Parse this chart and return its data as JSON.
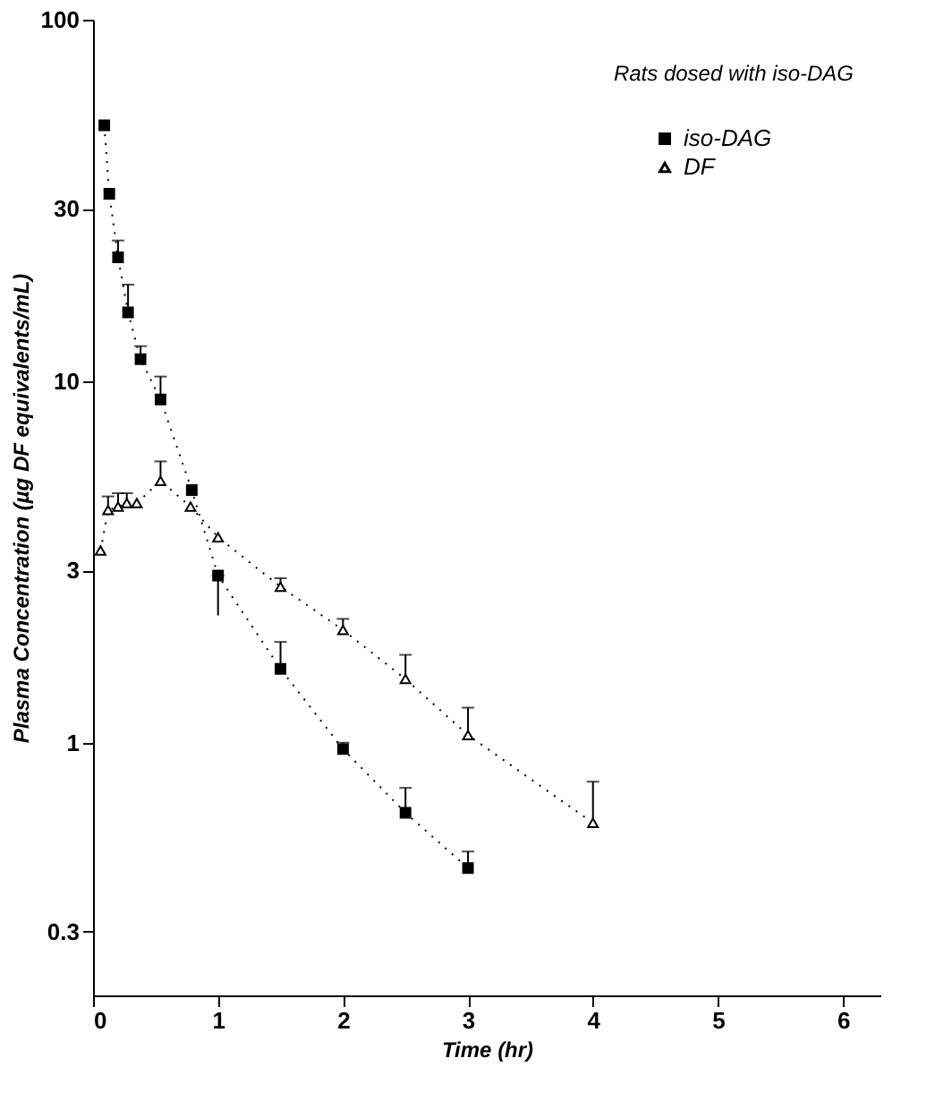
{
  "chart_data": {
    "type": "line",
    "xlabel": "Time (hr)",
    "ylabel": "Plasma Concentration (µg DF equivalents/mL)",
    "annotations": [
      "Rats dosed with iso-DAG"
    ],
    "log": "y",
    "xlim": [
      0,
      6.3
    ],
    "xticks": [
      0,
      1,
      2,
      3,
      4,
      5,
      6
    ],
    "ylim": [
      0.2,
      100
    ],
    "yticks": [
      100,
      30,
      10,
      3,
      1,
      0.3
    ],
    "grid": false,
    "legend": "top right",
    "series": [
      {
        "name": "iso-DAG",
        "color": "#000000",
        "marker": "square",
        "line_style": "dotted",
        "x": [
          0.09,
          0.13,
          0.2,
          0.28,
          0.38,
          0.54,
          0.79,
          1.0,
          1.5,
          2.0,
          2.5,
          3.0
        ],
        "values": [
          51,
          33,
          22,
          15.5,
          11.5,
          8.9,
          5.0,
          2.9,
          1.6,
          0.96,
          0.64,
          0.45
        ],
        "errors": [
          null,
          null,
          [
            22,
            24.5
          ],
          [
            15.5,
            18.5
          ],
          [
            11.5,
            12.5
          ],
          [
            8.9,
            10.3
          ],
          null,
          [
            2.25,
            2.9
          ],
          [
            1.6,
            1.9
          ],
          [
            0.96,
            1.0
          ],
          [
            0.64,
            0.75
          ],
          [
            0.45,
            0.5
          ]
        ]
      },
      {
        "name": "DF",
        "color": "#000000",
        "marker": "triangle",
        "line_style": "dotted",
        "x": [
          0.06,
          0.12,
          0.2,
          0.27,
          0.35,
          0.54,
          0.78,
          1.0,
          1.5,
          2.0,
          2.5,
          3.0,
          4.0
        ],
        "values": [
          3.4,
          4.4,
          4.5,
          4.6,
          4.6,
          5.3,
          4.5,
          3.7,
          2.7,
          2.05,
          1.5,
          1.05,
          0.6
        ],
        "errors": [
          null,
          [
            4.4,
            4.8
          ],
          [
            4.5,
            4.9
          ],
          [
            4.6,
            4.9
          ],
          null,
          [
            5.3,
            6.0
          ],
          null,
          null,
          [
            2.7,
            2.85
          ],
          [
            2.05,
            2.2
          ],
          [
            1.5,
            1.75
          ],
          [
            1.05,
            1.25
          ],
          [
            0.6,
            0.78
          ]
        ]
      }
    ]
  }
}
